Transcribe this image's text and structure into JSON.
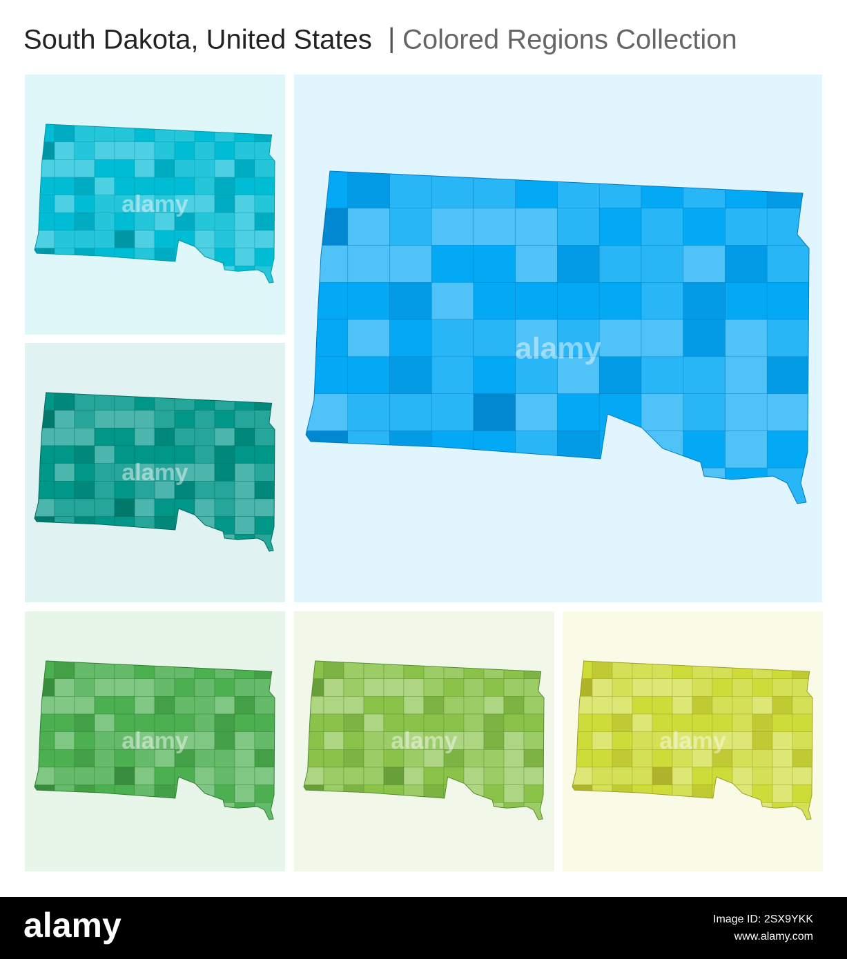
{
  "header": {
    "title": "South Dakota, United States",
    "separator": "|",
    "subtitle": "Colored Regions Collection"
  },
  "watermark": "alamy",
  "footer": {
    "logo": "alamy",
    "image_id": "Image ID: 2SX9YKK",
    "url": "www.alamy.com"
  }
}
